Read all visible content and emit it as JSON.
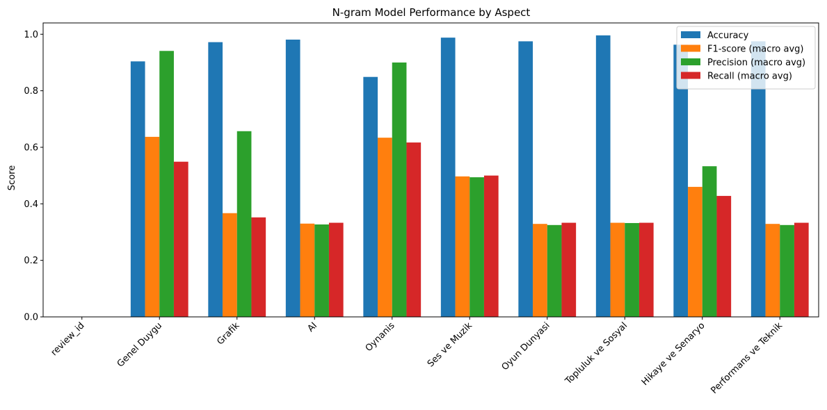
{
  "chart_data": {
    "type": "bar",
    "title": "N-gram Model Performance by Aspect",
    "xlabel": "",
    "ylabel": "Score",
    "ylim": [
      0,
      1.04
    ],
    "yticks": [
      0.0,
      0.2,
      0.4,
      0.6,
      0.8,
      1.0
    ],
    "ytick_labels": [
      "0.0",
      "0.2",
      "0.4",
      "0.6",
      "0.8",
      "1.0"
    ],
    "grid": false,
    "legend_position": "top-right",
    "categories": [
      "review_id",
      "Genel Duygu",
      "Grafik",
      "AI",
      "Oynanis",
      "Ses ve Muzik",
      "Oyun Dunyasi",
      "Topluluk ve Sosyal",
      "Hikaye ve Senaryo",
      "Performans ve Teknik"
    ],
    "series": [
      {
        "name": "Accuracy",
        "color": "#1f77b4",
        "values": [
          null,
          0.904,
          0.972,
          0.981,
          0.849,
          0.988,
          0.975,
          0.996,
          0.963,
          0.975
        ]
      },
      {
        "name": "F1-score (macro avg)",
        "color": "#ff7f0e",
        "values": [
          null,
          0.637,
          0.367,
          0.33,
          0.634,
          0.497,
          0.329,
          0.333,
          0.46,
          0.329
        ]
      },
      {
        "name": "Precision (macro avg)",
        "color": "#2ca02c",
        "values": [
          null,
          0.941,
          0.657,
          0.327,
          0.9,
          0.494,
          0.325,
          0.332,
          0.533,
          0.325
        ]
      },
      {
        "name": "Recall (macro avg)",
        "color": "#d62728",
        "values": [
          null,
          0.549,
          0.352,
          0.333,
          0.617,
          0.5,
          0.333,
          0.333,
          0.428,
          0.333
        ]
      }
    ]
  }
}
